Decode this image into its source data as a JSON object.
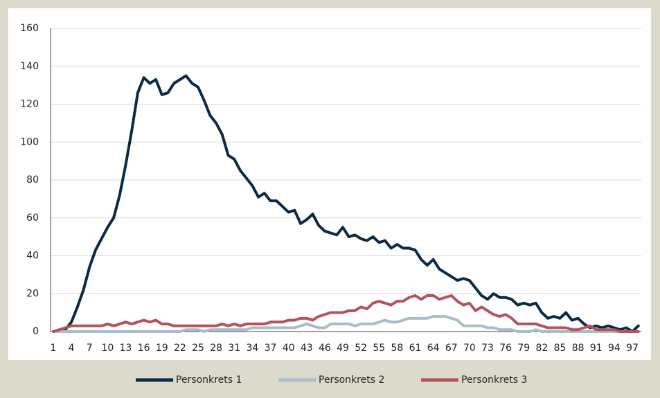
{
  "chart_data": {
    "type": "line",
    "categories": [
      "1",
      null,
      null,
      "4",
      null,
      null,
      "7",
      null,
      null,
      "10",
      null,
      null,
      "13",
      null,
      null,
      "16",
      null,
      null,
      "19",
      null,
      null,
      "22",
      null,
      null,
      "25",
      null,
      null,
      "28",
      null,
      null,
      "31",
      null,
      null,
      "34",
      null,
      null,
      "37",
      null,
      null,
      "40",
      null,
      null,
      "43",
      null,
      null,
      "46",
      null,
      null,
      "49",
      null,
      null,
      "52",
      null,
      null,
      "55",
      null,
      null,
      "58",
      null,
      null,
      "61",
      null,
      null,
      "64",
      null,
      null,
      "67",
      null,
      null,
      "70",
      null,
      null,
      "73",
      null,
      null,
      "76",
      null,
      null,
      "79",
      null,
      null,
      "82",
      null,
      null,
      "85",
      null,
      null,
      "88",
      null,
      null,
      "91",
      null,
      null,
      "94",
      null,
      null,
      "97",
      null
    ],
    "series": [
      {
        "name": "Personkrets 1",
        "color": "#0b2a44",
        "values": [
          0,
          0,
          1,
          5,
          13,
          22,
          34,
          43,
          49,
          55,
          60,
          72,
          88,
          106,
          126,
          134,
          131,
          133,
          125,
          126,
          131,
          133,
          135,
          131,
          129,
          122,
          114,
          110,
          104,
          93,
          91,
          85,
          81,
          77,
          71,
          73,
          69,
          69,
          66,
          63,
          64,
          57,
          59,
          62,
          56,
          53,
          52,
          51,
          55,
          50,
          51,
          49,
          48,
          50,
          47,
          48,
          44,
          46,
          44,
          44,
          43,
          38,
          35,
          38,
          33,
          31,
          29,
          27,
          28,
          27,
          23,
          19,
          17,
          20,
          18,
          18,
          17,
          14,
          15,
          14,
          15,
          10,
          7,
          8,
          7,
          10,
          6,
          7,
          4,
          2,
          3,
          2,
          3,
          2,
          1,
          2,
          0,
          3
        ]
      },
      {
        "name": "Personkrets 2",
        "color": "#a9bdc8",
        "values": [
          0,
          0,
          0,
          0,
          0,
          0,
          0,
          0,
          0,
          0,
          0,
          0,
          0,
          0,
          0,
          0,
          0,
          0,
          0,
          0,
          0,
          0,
          1,
          1,
          1,
          0,
          1,
          1,
          1,
          1,
          1,
          1,
          1,
          2,
          2,
          2,
          2,
          2,
          2,
          2,
          2,
          3,
          4,
          3,
          2,
          2,
          4,
          4,
          4,
          4,
          3,
          4,
          4,
          4,
          5,
          6,
          5,
          5,
          6,
          7,
          7,
          7,
          7,
          8,
          8,
          8,
          7,
          6,
          3,
          3,
          3,
          3,
          2,
          2,
          1,
          1,
          1,
          0,
          0,
          0,
          1,
          0,
          0,
          0,
          0,
          0,
          0,
          0,
          0,
          0,
          0,
          0,
          0,
          0,
          0,
          0,
          0,
          0
        ]
      },
      {
        "name": "Personkrets 3",
        "color": "#b4545a",
        "values": [
          0,
          1,
          2,
          3,
          3,
          3,
          3,
          3,
          3,
          4,
          3,
          4,
          5,
          4,
          5,
          6,
          5,
          6,
          4,
          4,
          3,
          3,
          3,
          3,
          3,
          3,
          3,
          3,
          4,
          3,
          4,
          3,
          4,
          4,
          4,
          4,
          5,
          5,
          5,
          6,
          6,
          7,
          7,
          6,
          8,
          9,
          10,
          10,
          10,
          11,
          11,
          13,
          12,
          15,
          16,
          15,
          14,
          16,
          16,
          18,
          19,
          17,
          19,
          19,
          17,
          18,
          19,
          16,
          14,
          15,
          11,
          13,
          11,
          9,
          8,
          9,
          7,
          4,
          4,
          4,
          4,
          3,
          2,
          2,
          2,
          2,
          1,
          1,
          2,
          3,
          1,
          1,
          1,
          1,
          0,
          0,
          0,
          0
        ]
      }
    ],
    "ylim": [
      0,
      160
    ],
    "yticks": [
      0,
      20,
      40,
      60,
      80,
      100,
      120,
      140,
      160
    ],
    "grid": true,
    "legend": "bottom"
  }
}
